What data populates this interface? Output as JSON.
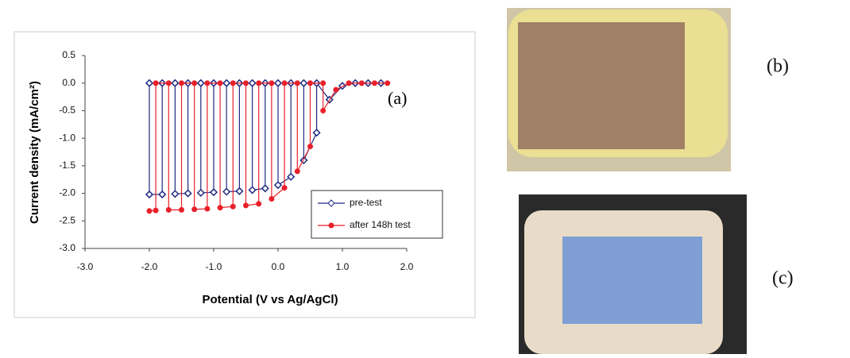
{
  "chart_data": {
    "type": "line",
    "xlabel": "Potential (V vs Ag/AgCl)",
    "ylabel": "Current density (mA/cm²)",
    "annotation": "(a)",
    "xlim": [
      -3,
      2
    ],
    "ylim": [
      -3,
      0.5
    ],
    "xticks": [
      {
        "value": -3,
        "label": "-3.0"
      },
      {
        "value": -2,
        "label": "-2.0"
      },
      {
        "value": -1,
        "label": "-1.0"
      },
      {
        "value": 0,
        "label": "0.0"
      },
      {
        "value": 1,
        "label": "1.0"
      },
      {
        "value": 2,
        "label": "2.0"
      }
    ],
    "yticks": [
      0.5,
      {
        "value": 0,
        "label": "0.0"
      },
      -0.5,
      {
        "value": -1,
        "label": "-1.0"
      },
      -1.5,
      {
        "value": -2,
        "label": "-2.0"
      },
      -2.5,
      {
        "value": -3,
        "label": "-3.0"
      }
    ],
    "legend": "lower right",
    "series": [
      {
        "name": "pre-test",
        "color": "#1f2a80",
        "marker": "diamond",
        "x": [
          -2.0,
          -2.0,
          -1.8,
          -1.8,
          -1.6,
          -1.6,
          -1.4,
          -1.4,
          -1.2,
          -1.2,
          -1.0,
          -1.0,
          -0.8,
          -0.8,
          -0.6,
          -0.6,
          -0.4,
          -0.4,
          -0.2,
          -0.2,
          0.0,
          0.0,
          0.2,
          0.2,
          0.4,
          0.4,
          0.6,
          0.6,
          0.8,
          1.0,
          1.2,
          1.4,
          1.6
        ],
        "values": [
          0,
          -2.02,
          -2.02,
          0,
          0,
          -2.01,
          -2.0,
          0,
          0,
          -1.99,
          -1.98,
          0,
          0,
          -1.97,
          -1.96,
          0,
          0,
          -1.94,
          -1.91,
          0,
          0,
          -1.85,
          -1.7,
          0,
          0,
          -1.4,
          -0.9,
          0,
          -0.3,
          -0.05,
          0,
          0,
          0
        ]
      },
      {
        "name": "after 148h test",
        "color": "#e8202a",
        "marker": "circle",
        "x": [
          -2.0,
          -1.9,
          -1.9,
          -1.7,
          -1.7,
          -1.5,
          -1.5,
          -1.3,
          -1.3,
          -1.1,
          -1.1,
          -0.9,
          -0.9,
          -0.7,
          -0.7,
          -0.5,
          -0.5,
          -0.3,
          -0.3,
          -0.1,
          -0.1,
          0.1,
          0.1,
          0.3,
          0.3,
          0.5,
          0.5,
          0.7,
          0.7,
          0.9,
          1.1,
          1.3,
          1.5,
          1.7
        ],
        "values": [
          -2.32,
          -2.31,
          0,
          0,
          -2.3,
          -2.3,
          0,
          0,
          -2.29,
          -2.28,
          0,
          0,
          -2.26,
          -2.24,
          0,
          0,
          -2.22,
          -2.19,
          0,
          0,
          -2.1,
          -1.9,
          0,
          0,
          -1.6,
          -1.15,
          0,
          0,
          -0.5,
          -0.12,
          0,
          0,
          0,
          0
        ]
      }
    ]
  },
  "panels": [
    {
      "label": "(b)"
    },
    {
      "label": "(c)"
    }
  ]
}
